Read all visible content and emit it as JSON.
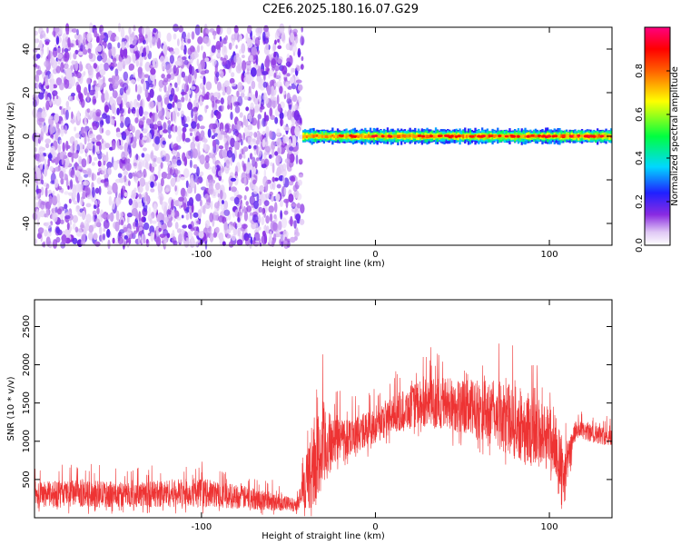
{
  "title": "C2E6.2025.180.16.07.G29",
  "colors": {
    "snr_line": "#ee3333",
    "axis": "#000000",
    "background": "#ffffff"
  },
  "colorbar": {
    "label": "Normalized spectral amplitude",
    "range": [
      0,
      1
    ],
    "ticks": [
      0.0,
      0.2,
      0.4,
      0.6,
      0.8
    ],
    "tick_labels": [
      "0.0",
      "0.2",
      "0.4",
      "0.6",
      "0.8"
    ],
    "colormap": "rainbow (white-violet-blue-cyan-green-yellow-red-magenta)"
  },
  "chart_data": [
    {
      "type": "heatmap",
      "xlabel": "Height of straight line (km)",
      "ylabel": "Frequency (Hz)",
      "xlim": [
        -196,
        136
      ],
      "ylim": [
        -50,
        50
      ],
      "x_ticks": [
        -100,
        0,
        100
      ],
      "x_tick_labels": [
        "-100",
        "0",
        "100"
      ],
      "y_ticks": [
        -40,
        -20,
        0,
        20,
        40
      ],
      "y_tick_labels": [
        "-40",
        "-20",
        "0",
        "20",
        "40"
      ],
      "regions": [
        {
          "x_range": [
            -196,
            -42
          ],
          "description": "broadband noise",
          "amplitude_range": [
            0.0,
            0.15
          ]
        },
        {
          "x_range": [
            -42,
            136
          ],
          "freq_center": 0,
          "freq_halfwidth": 3,
          "amplitude_range": [
            0.3,
            0.95
          ]
        }
      ]
    },
    {
      "type": "line",
      "xlabel": "Height of straight line (km)",
      "ylabel": "SNR (10 * v/v)",
      "xlim": [
        -196,
        136
      ],
      "ylim": [
        0,
        2850
      ],
      "x_ticks": [
        -100,
        0,
        100
      ],
      "x_tick_labels": [
        "-100",
        "0",
        "100"
      ],
      "y_ticks": [
        500,
        1000,
        1500,
        2000,
        2500
      ],
      "y_tick_labels": [
        "500",
        "1000",
        "1500",
        "2000",
        "2500"
      ],
      "series": [
        {
          "envelope_x": [
            -196,
            -180,
            -160,
            -140,
            -120,
            -100,
            -80,
            -60,
            -45,
            -35,
            -30,
            -25,
            -20,
            -10,
            0,
            10,
            20,
            30,
            40,
            50,
            60,
            70,
            80,
            90,
            100,
            105,
            108,
            115,
            125,
            136
          ],
          "envelope_mean": [
            300,
            320,
            310,
            300,
            320,
            330,
            280,
            220,
            160,
            700,
            900,
            1000,
            1050,
            1100,
            1200,
            1350,
            1450,
            1500,
            1500,
            1450,
            1400,
            1350,
            1250,
            1150,
            1050,
            900,
            500,
            1150,
            1100,
            1050
          ],
          "envelope_spread": [
            200,
            220,
            220,
            200,
            230,
            230,
            200,
            160,
            100,
            700,
            800,
            400,
            350,
            300,
            300,
            300,
            350,
            400,
            450,
            450,
            500,
            550,
            600,
            600,
            550,
            500,
            400,
            150,
            150,
            150
          ]
        }
      ]
    }
  ]
}
